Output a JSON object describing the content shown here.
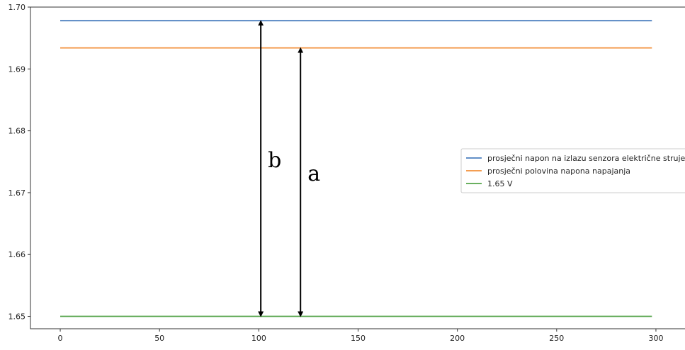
{
  "chart_data": {
    "type": "line",
    "title": "",
    "xlabel": "",
    "ylabel": "",
    "xlim": [
      -15,
      315
    ],
    "ylim": [
      1.648,
      1.7
    ],
    "xticks": [
      0,
      50,
      100,
      150,
      200,
      250,
      300
    ],
    "xtick_labels": [
      "0",
      "50",
      "100",
      "150",
      "200",
      "250",
      "300"
    ],
    "yticks": [
      1.65,
      1.66,
      1.67,
      1.68,
      1.69,
      1.7
    ],
    "ytick_labels": [
      "1.65",
      "1.66",
      "1.67",
      "1.68",
      "1.69",
      "1.70"
    ],
    "grid": false,
    "legend_position": "center-right",
    "series": [
      {
        "name": "prosječni napon na izlazu senzora električne struje",
        "color": "#4c7fbf",
        "x": [
          0,
          298
        ],
        "y": [
          1.6978,
          1.6978
        ]
      },
      {
        "name": "prosječni polovina napona napajanja",
        "color": "#f2903a",
        "x": [
          0,
          298
        ],
        "y": [
          1.6934,
          1.6934
        ]
      },
      {
        "name": "1.65 V",
        "color": "#55a44a",
        "x": [
          0,
          298
        ],
        "y": [
          1.65,
          1.65
        ]
      }
    ],
    "annotations": [
      {
        "label": "b",
        "x": 101,
        "y_from": 1.65,
        "y_to": 1.6978
      },
      {
        "label": "a",
        "x": 121,
        "y_from": 1.65,
        "y_to": 1.6934
      }
    ]
  }
}
